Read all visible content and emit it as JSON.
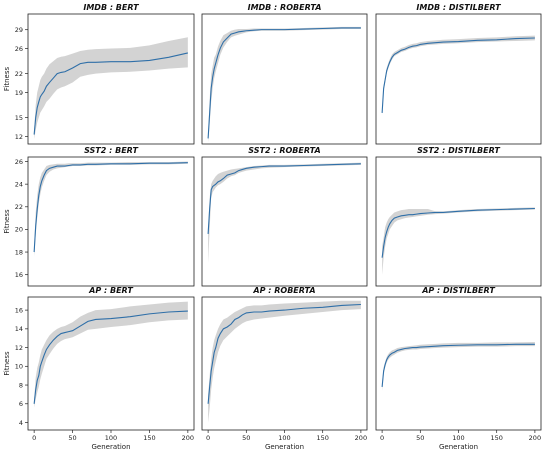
{
  "chart_data": [
    {
      "type": "line",
      "title": "IMDB : BERT",
      "xlabel": "",
      "ylabel": "Fitness",
      "xlim": [
        -8,
        208
      ],
      "ylim": [
        10.8,
        31.5
      ],
      "yticks": [
        12,
        15,
        19,
        22,
        26,
        29
      ],
      "xticks": [],
      "xtick_labels": [],
      "series": [
        {
          "x": [
            0,
            2,
            4,
            6,
            8,
            10,
            13,
            16,
            20,
            25,
            30,
            35,
            40,
            45,
            50,
            60,
            70,
            80,
            100,
            125,
            150,
            175,
            200
          ],
          "y": [
            12.3,
            15.0,
            16.6,
            17.5,
            18.3,
            18.7,
            19.2,
            20.0,
            20.6,
            21.3,
            22.0,
            22.2,
            22.3,
            22.6,
            22.9,
            23.6,
            23.8,
            23.8,
            23.9,
            23.9,
            24.1,
            24.6,
            25.3
          ],
          "lower": [
            11.6,
            13.0,
            14.2,
            15.0,
            15.8,
            16.2,
            16.8,
            17.5,
            18.0,
            18.8,
            19.5,
            19.8,
            20.0,
            20.3,
            20.6,
            21.5,
            21.8,
            22.0,
            22.2,
            22.3,
            22.5,
            22.8,
            23.0
          ],
          "upper": [
            13.0,
            17.0,
            19.0,
            20.0,
            21.0,
            21.5,
            22.0,
            22.8,
            23.5,
            24.0,
            24.5,
            24.7,
            24.8,
            25.0,
            25.2,
            25.6,
            25.8,
            25.9,
            26.0,
            26.1,
            26.5,
            27.2,
            27.8
          ]
        }
      ]
    },
    {
      "type": "line",
      "title": "IMDB : ROBERTA",
      "xlabel": "",
      "ylabel": "",
      "xlim": [
        -8,
        208
      ],
      "ylim": [
        11.5,
        34.8
      ],
      "yticks": [],
      "xticks": [],
      "xtick_labels": [],
      "series": [
        {
          "x": [
            0,
            2,
            4,
            6,
            8,
            10,
            13,
            16,
            20,
            25,
            30,
            35,
            40,
            45,
            50,
            60,
            70,
            80,
            100,
            125,
            150,
            175,
            200
          ],
          "y": [
            12.5,
            17.0,
            21.5,
            23.5,
            25.0,
            26.0,
            27.5,
            28.7,
            29.8,
            30.5,
            31.2,
            31.4,
            31.6,
            31.7,
            31.8,
            31.9,
            32.0,
            32.0,
            32.0,
            32.1,
            32.2,
            32.3,
            32.3
          ],
          "lower": [
            11.8,
            15.0,
            19.0,
            21.5,
            23.3,
            24.5,
            26.0,
            27.5,
            28.8,
            29.8,
            30.6,
            30.9,
            31.1,
            31.3,
            31.5,
            31.7,
            31.8,
            31.8,
            31.8,
            31.9,
            32.0,
            32.1,
            32.1
          ],
          "upper": [
            13.2,
            19.5,
            24.0,
            25.5,
            27.0,
            27.5,
            29.0,
            30.0,
            31.0,
            31.4,
            31.8,
            32.0,
            32.1,
            32.1,
            32.1,
            32.2,
            32.2,
            32.2,
            32.2,
            32.3,
            32.4,
            32.5,
            32.5
          ]
        }
      ]
    },
    {
      "type": "line",
      "title": "IMDB : DISTILBERT",
      "xlabel": "",
      "ylabel": "",
      "xlim": [
        -8,
        208
      ],
      "ylim": [
        10.0,
        32.2
      ],
      "yticks": [],
      "xticks": [],
      "xtick_labels": [],
      "series": [
        {
          "x": [
            0,
            2,
            4,
            6,
            8,
            10,
            13,
            16,
            20,
            25,
            30,
            35,
            40,
            45,
            50,
            60,
            70,
            80,
            100,
            125,
            150,
            175,
            200
          ],
          "y": [
            15.3,
            19.5,
            21.0,
            22.5,
            23.3,
            24.0,
            24.8,
            25.3,
            25.6,
            26.0,
            26.2,
            26.5,
            26.7,
            26.8,
            27.0,
            27.2,
            27.3,
            27.4,
            27.5,
            27.7,
            27.8,
            28.0,
            28.1
          ],
          "lower": [
            15.0,
            19.0,
            20.5,
            22.0,
            22.9,
            23.6,
            24.4,
            25.0,
            25.3,
            25.7,
            25.9,
            26.2,
            26.4,
            26.5,
            26.7,
            26.9,
            27.0,
            27.1,
            27.2,
            27.4,
            27.5,
            27.6,
            27.7
          ],
          "upper": [
            15.6,
            20.0,
            21.5,
            23.0,
            23.8,
            24.5,
            25.3,
            25.7,
            26.0,
            26.4,
            26.6,
            26.9,
            27.1,
            27.2,
            27.4,
            27.6,
            27.7,
            27.8,
            27.9,
            28.1,
            28.2,
            28.4,
            28.5
          ]
        }
      ]
    },
    {
      "type": "line",
      "title": "SST2 : BERT",
      "xlabel": "",
      "ylabel": "Fitness",
      "xlim": [
        -8,
        208
      ],
      "ylim": [
        15.0,
        26.4
      ],
      "yticks": [
        16,
        18,
        20,
        22,
        24,
        26
      ],
      "xticks": [],
      "xtick_labels": [],
      "series": [
        {
          "x": [
            0,
            2,
            4,
            6,
            8,
            10,
            13,
            16,
            20,
            25,
            30,
            35,
            40,
            45,
            50,
            60,
            70,
            80,
            100,
            125,
            150,
            175,
            200
          ],
          "y": [
            18.0,
            20.3,
            21.8,
            23.0,
            23.8,
            24.3,
            24.8,
            25.2,
            25.4,
            25.5,
            25.6,
            25.6,
            25.6,
            25.65,
            25.7,
            25.7,
            25.75,
            25.75,
            25.8,
            25.8,
            25.85,
            25.85,
            25.9
          ],
          "lower": [
            17.6,
            19.5,
            21.0,
            22.3,
            23.1,
            23.7,
            24.3,
            24.8,
            25.1,
            25.3,
            25.4,
            25.45,
            25.5,
            25.55,
            25.6,
            25.6,
            25.65,
            25.65,
            25.7,
            25.7,
            25.75,
            25.75,
            25.8
          ],
          "upper": [
            18.4,
            21.5,
            23.0,
            24.0,
            24.6,
            25.0,
            25.3,
            25.6,
            25.7,
            25.75,
            25.8,
            25.8,
            25.8,
            25.85,
            25.85,
            25.85,
            25.9,
            25.9,
            25.9,
            25.95,
            25.95,
            25.95,
            26.0
          ]
        }
      ]
    },
    {
      "type": "line",
      "title": "SST2 : ROBERTA",
      "xlabel": "",
      "ylabel": "",
      "xlim": [
        -8,
        208
      ],
      "ylim": [
        15.0,
        26.4
      ],
      "yticks": [],
      "xticks": [],
      "xtick_labels": [],
      "series": [
        {
          "x": [
            0,
            2,
            4,
            6,
            8,
            10,
            13,
            16,
            20,
            25,
            30,
            35,
            40,
            45,
            50,
            60,
            70,
            80,
            100,
            125,
            150,
            175,
            200
          ],
          "y": [
            19.6,
            21.8,
            23.5,
            23.8,
            23.9,
            24.0,
            24.2,
            24.3,
            24.5,
            24.8,
            24.9,
            25.0,
            25.2,
            25.3,
            25.4,
            25.5,
            25.55,
            25.6,
            25.6,
            25.65,
            25.7,
            25.75,
            25.8
          ],
          "lower": [
            17.0,
            20.0,
            22.8,
            23.3,
            23.5,
            23.7,
            23.9,
            24.0,
            24.2,
            24.5,
            24.7,
            24.8,
            25.0,
            25.1,
            25.2,
            25.3,
            25.4,
            25.45,
            25.5,
            25.55,
            25.6,
            25.65,
            25.7
          ],
          "upper": [
            20.0,
            22.8,
            24.0,
            24.3,
            24.5,
            24.7,
            24.9,
            25.0,
            25.1,
            25.2,
            25.3,
            25.35,
            25.4,
            25.45,
            25.5,
            25.6,
            25.65,
            25.7,
            25.7,
            25.75,
            25.8,
            25.85,
            25.9
          ]
        }
      ]
    },
    {
      "type": "line",
      "title": "SST2 : DISTILBERT",
      "xlabel": "",
      "ylabel": "",
      "xlim": [
        -8,
        208
      ],
      "ylim": [
        15.0,
        26.4
      ],
      "yticks": [],
      "xticks": [],
      "xtick_labels": [],
      "series": [
        {
          "x": [
            0,
            2,
            4,
            6,
            8,
            10,
            13,
            16,
            20,
            25,
            30,
            35,
            40,
            45,
            50,
            60,
            70,
            80,
            100,
            125,
            150,
            175,
            200
          ],
          "y": [
            17.5,
            18.5,
            19.3,
            19.8,
            20.2,
            20.5,
            20.8,
            21.0,
            21.1,
            21.2,
            21.25,
            21.3,
            21.3,
            21.35,
            21.4,
            21.45,
            21.5,
            21.5,
            21.6,
            21.7,
            21.75,
            21.8,
            21.85
          ],
          "lower": [
            16.0,
            17.5,
            18.5,
            19.2,
            19.6,
            20.0,
            20.3,
            20.6,
            20.8,
            20.9,
            21.0,
            21.05,
            21.1,
            21.15,
            21.2,
            21.3,
            21.35,
            21.4,
            21.5,
            21.6,
            21.65,
            21.7,
            21.75
          ],
          "upper": [
            18.5,
            19.3,
            20.2,
            20.6,
            20.9,
            21.1,
            21.3,
            21.5,
            21.6,
            21.7,
            21.75,
            21.8,
            21.8,
            21.8,
            21.8,
            21.8,
            21.6,
            21.6,
            21.7,
            21.8,
            21.85,
            21.9,
            21.95
          ]
        }
      ]
    },
    {
      "type": "line",
      "title": "AP : BERT",
      "xlabel": "Generation",
      "ylabel": "Fitness",
      "xlim": [
        -8,
        208
      ],
      "ylim": [
        3.2,
        17.4
      ],
      "yticks": [
        4,
        6,
        8,
        10,
        12,
        14,
        16
      ],
      "xticks": [
        0,
        50,
        100,
        150,
        200
      ],
      "xtick_labels": [
        "0",
        "50",
        "100",
        "150",
        "200"
      ],
      "series": [
        {
          "x": [
            0,
            2,
            4,
            6,
            8,
            10,
            13,
            16,
            20,
            25,
            30,
            35,
            40,
            45,
            50,
            60,
            70,
            80,
            100,
            125,
            150,
            175,
            200
          ],
          "y": [
            6.0,
            7.5,
            8.5,
            9.0,
            10.0,
            10.5,
            11.2,
            11.8,
            12.3,
            12.8,
            13.2,
            13.5,
            13.6,
            13.7,
            13.8,
            14.3,
            14.8,
            15.0,
            15.1,
            15.3,
            15.6,
            15.8,
            15.9
          ],
          "lower": [
            5.6,
            6.5,
            7.2,
            7.8,
            8.6,
            9.2,
            10.0,
            10.8,
            11.3,
            11.9,
            12.4,
            12.7,
            12.9,
            13.0,
            13.1,
            13.5,
            13.9,
            14.0,
            14.2,
            14.4,
            14.7,
            14.9,
            15.0
          ],
          "upper": [
            6.5,
            8.8,
            9.8,
            10.4,
            11.2,
            11.8,
            12.3,
            12.8,
            13.3,
            13.7,
            14.0,
            14.2,
            14.3,
            14.5,
            14.7,
            15.3,
            15.7,
            16.0,
            16.1,
            16.4,
            16.6,
            16.8,
            16.9
          ]
        }
      ]
    },
    {
      "type": "line",
      "title": "AP : ROBERTA",
      "xlabel": "Generation",
      "ylabel": "",
      "xlim": [
        -8,
        208
      ],
      "ylim": [
        3.2,
        17.4
      ],
      "yticks": [],
      "xticks": [
        0,
        50,
        100,
        150,
        200
      ],
      "xtick_labels": [
        "0",
        "50",
        "100",
        "150",
        "200"
      ],
      "series": [
        {
          "x": [
            0,
            2,
            4,
            6,
            8,
            10,
            13,
            16,
            20,
            25,
            30,
            35,
            40,
            45,
            50,
            60,
            70,
            80,
            100,
            125,
            150,
            175,
            200
          ],
          "y": [
            6.0,
            7.8,
            9.5,
            10.5,
            11.5,
            12.0,
            13.0,
            13.5,
            14.0,
            14.2,
            14.5,
            15.0,
            15.2,
            15.5,
            15.7,
            15.8,
            15.8,
            15.9,
            16.0,
            16.2,
            16.3,
            16.5,
            16.6
          ],
          "lower": [
            4.0,
            5.5,
            7.5,
            8.8,
            9.8,
            10.5,
            11.5,
            12.2,
            12.8,
            13.2,
            13.6,
            14.0,
            14.3,
            14.6,
            14.8,
            15.0,
            15.1,
            15.2,
            15.4,
            15.6,
            15.8,
            16.0,
            16.1
          ],
          "upper": [
            7.0,
            9.0,
            10.8,
            12.0,
            12.8,
            13.3,
            14.0,
            14.5,
            15.0,
            15.2,
            15.5,
            15.8,
            16.0,
            16.2,
            16.4,
            16.5,
            16.5,
            16.6,
            16.7,
            16.8,
            16.9,
            17.0,
            17.0
          ]
        }
      ]
    },
    {
      "type": "line",
      "title": "AP : DISTILBERT",
      "xlabel": "Generation",
      "ylabel": "",
      "xlim": [
        -8,
        208
      ],
      "ylim": [
        3.2,
        17.4
      ],
      "yticks": [],
      "xticks": [
        0,
        50,
        100,
        150,
        200
      ],
      "xtick_labels": [
        "0",
        "50",
        "100",
        "150",
        "200"
      ],
      "series": [
        {
          "x": [
            0,
            2,
            4,
            6,
            8,
            10,
            13,
            16,
            20,
            25,
            30,
            35,
            40,
            45,
            50,
            60,
            70,
            80,
            100,
            125,
            150,
            175,
            200
          ],
          "y": [
            7.8,
            9.5,
            10.2,
            10.7,
            11.0,
            11.2,
            11.4,
            11.5,
            11.7,
            11.8,
            11.9,
            11.95,
            12.0,
            12.0,
            12.05,
            12.1,
            12.15,
            12.2,
            12.25,
            12.3,
            12.3,
            12.35,
            12.35
          ],
          "lower": [
            7.4,
            9.1,
            9.9,
            10.4,
            10.7,
            10.9,
            11.1,
            11.25,
            11.45,
            11.6,
            11.7,
            11.75,
            11.8,
            11.8,
            11.85,
            11.9,
            11.95,
            12.0,
            12.05,
            12.1,
            12.1,
            12.15,
            12.15
          ],
          "upper": [
            8.2,
            9.9,
            10.5,
            11.0,
            11.3,
            11.5,
            11.7,
            11.8,
            11.95,
            12.05,
            12.1,
            12.15,
            12.2,
            12.25,
            12.3,
            12.35,
            12.4,
            12.45,
            12.5,
            12.5,
            12.55,
            12.55,
            12.6
          ]
        }
      ]
    }
  ]
}
